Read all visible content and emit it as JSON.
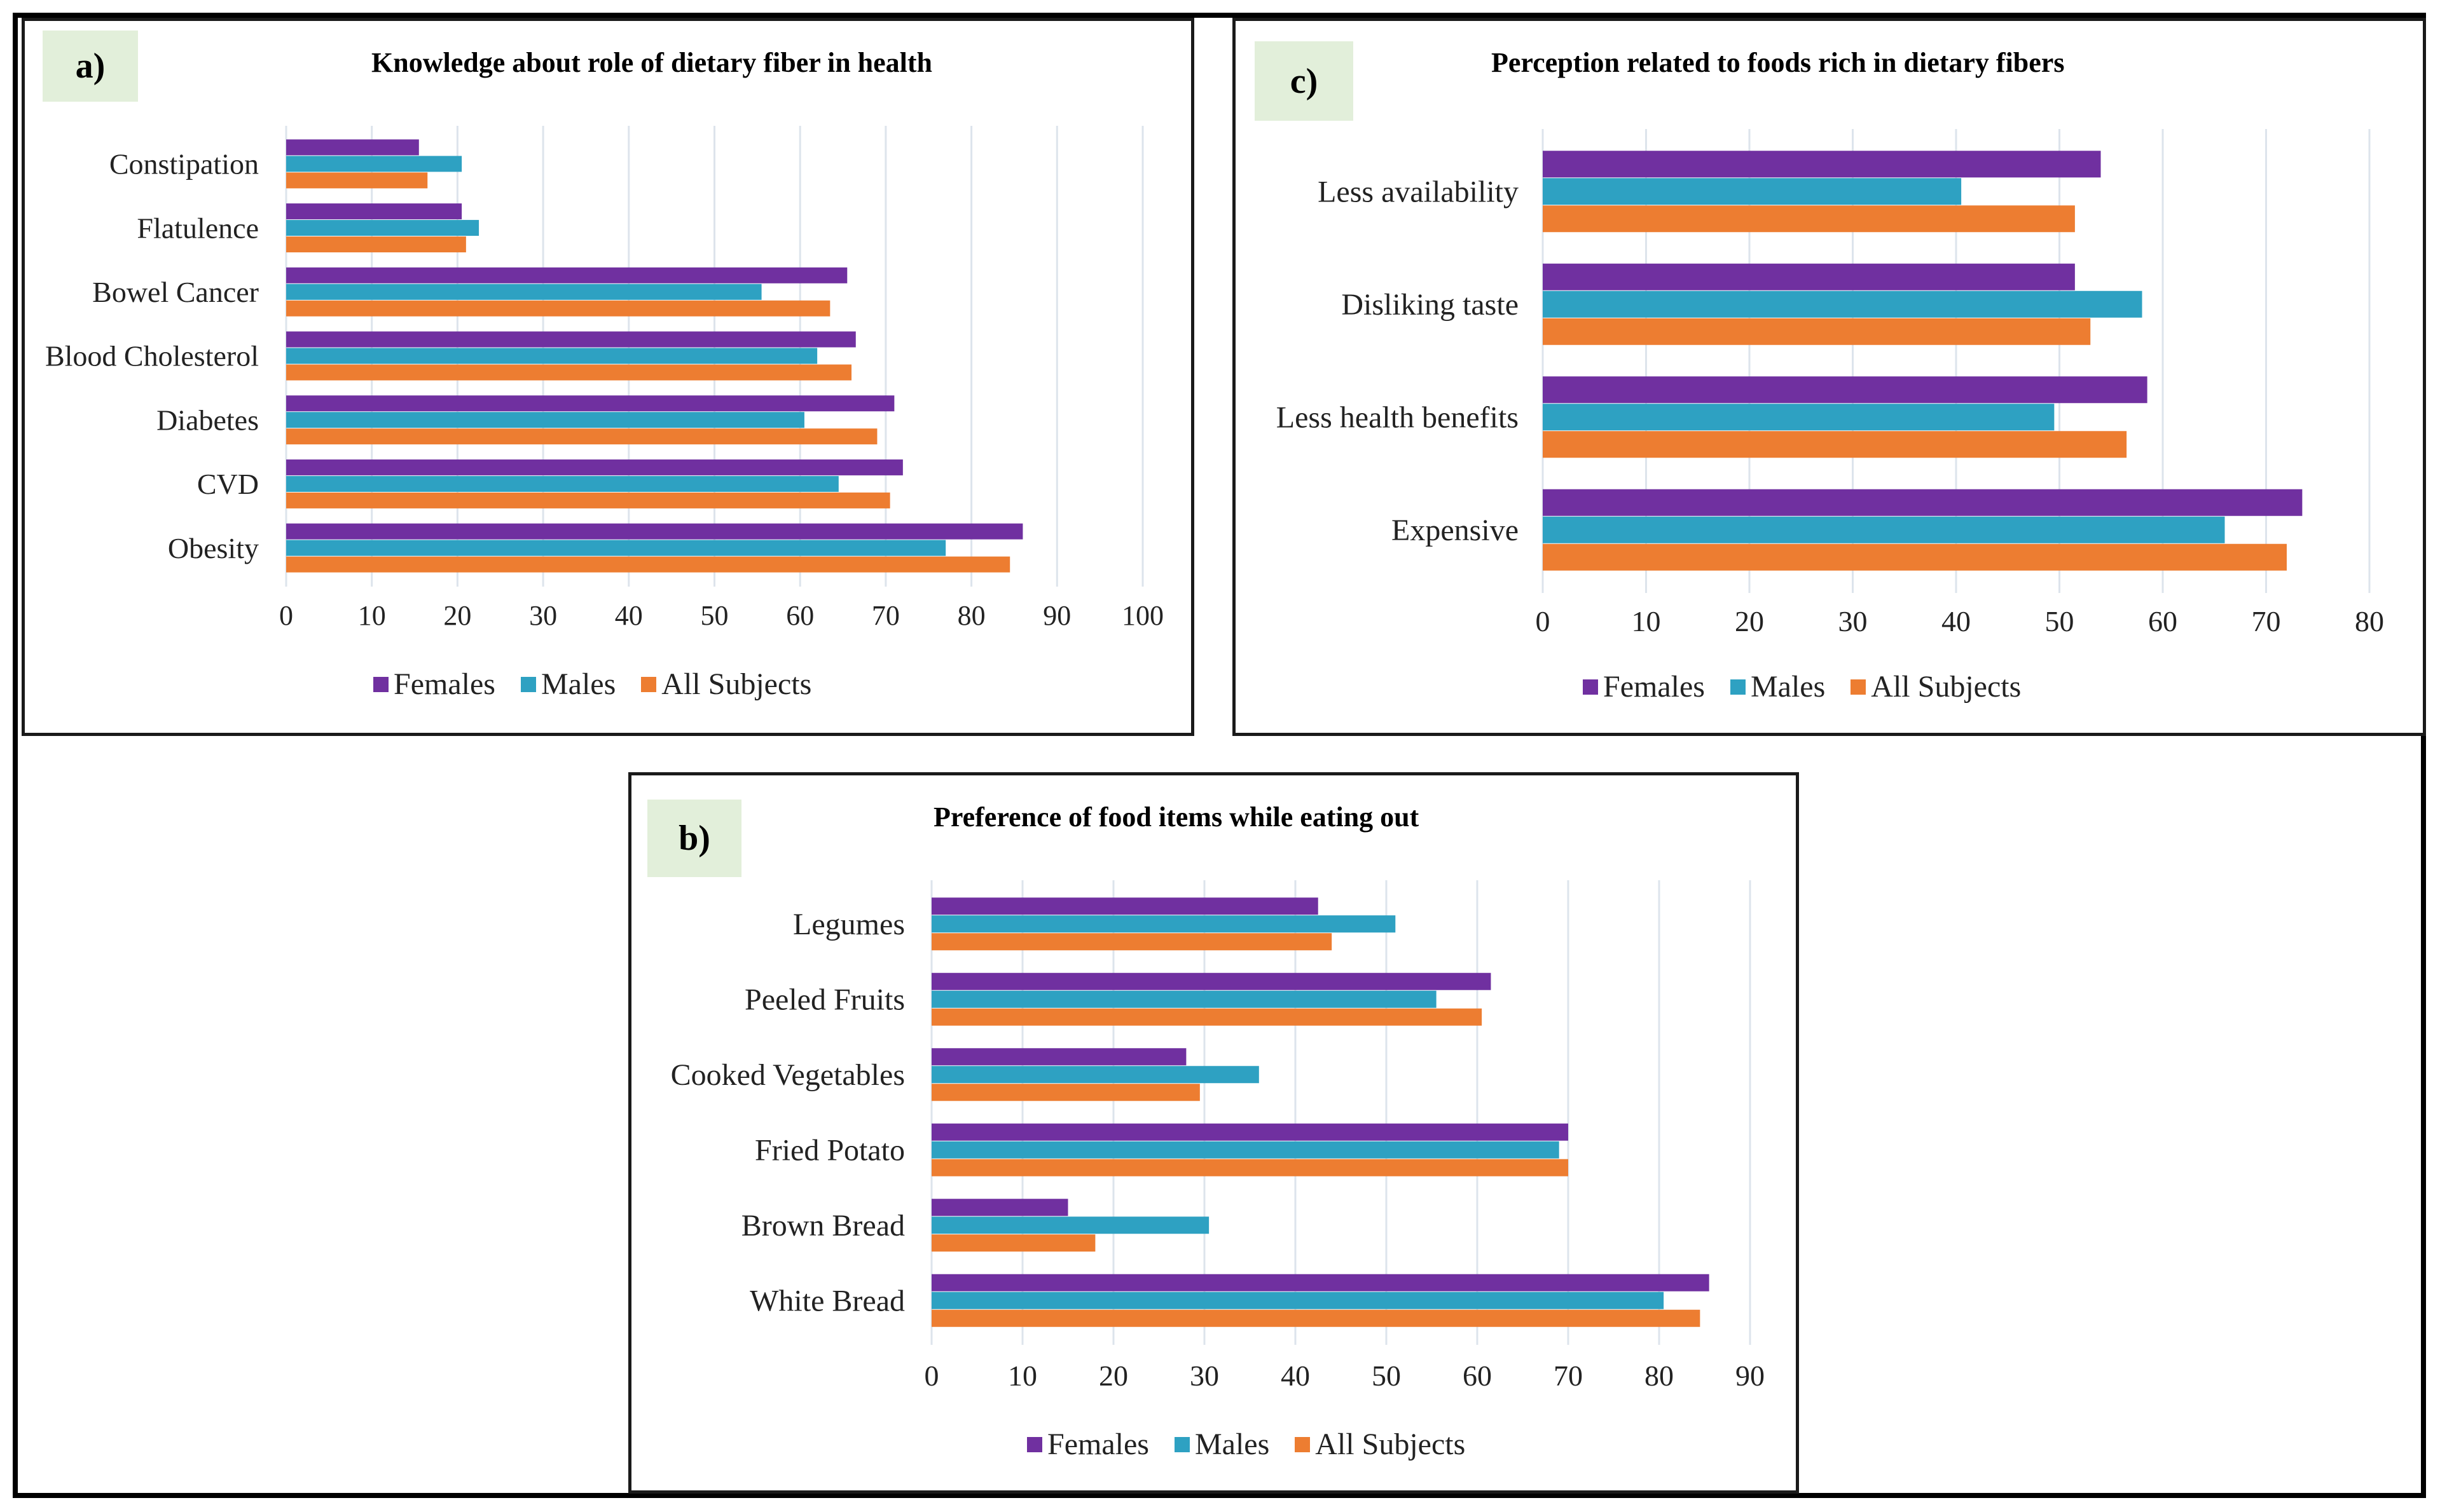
{
  "colors": {
    "females": "#7030a0",
    "males": "#2ea1c2",
    "all": "#ed7d31",
    "grid": "#dde4ec"
  },
  "legend": {
    "females": "Females",
    "males": "Males",
    "all": "All Subjects"
  },
  "chart_data": [
    {
      "id": "a",
      "label": "a)",
      "type": "bar",
      "orientation": "horizontal",
      "title": "Knowledge about role of dietary fiber in health",
      "categories": [
        "Constipation",
        "Flatulence",
        "Bowel Cancer",
        "Blood Cholesterol",
        "Diabetes",
        "CVD",
        "Obesity"
      ],
      "series": [
        {
          "name": "Females",
          "values": [
            15.5,
            20.5,
            65.5,
            66.5,
            71,
            72,
            86
          ]
        },
        {
          "name": "Males",
          "values": [
            20.5,
            22.5,
            55.5,
            62,
            60.5,
            64.5,
            77
          ]
        },
        {
          "name": "All Subjects",
          "values": [
            16.5,
            21,
            63.5,
            66,
            69,
            70.5,
            84.5
          ]
        }
      ],
      "xlim": [
        0,
        100
      ],
      "xticks": [
        0,
        10,
        20,
        30,
        40,
        50,
        60,
        70,
        80,
        90,
        100
      ],
      "grid": true,
      "legend_position": "bottom"
    },
    {
      "id": "c",
      "label": "c)",
      "type": "bar",
      "orientation": "horizontal",
      "title": "Perception related to foods rich in dietary fibers",
      "categories": [
        "Less availability",
        "Disliking taste",
        "Less health benefits",
        "Expensive"
      ],
      "series": [
        {
          "name": "Females",
          "values": [
            54,
            51.5,
            58.5,
            73.5
          ]
        },
        {
          "name": "Males",
          "values": [
            40.5,
            58,
            49.5,
            66
          ]
        },
        {
          "name": "All Subjects",
          "values": [
            51.5,
            53,
            56.5,
            72
          ]
        }
      ],
      "xlim": [
        0,
        80
      ],
      "xticks": [
        0,
        10,
        20,
        30,
        40,
        50,
        60,
        70,
        80
      ],
      "grid": true,
      "legend_position": "bottom"
    },
    {
      "id": "b",
      "label": "b)",
      "type": "bar",
      "orientation": "horizontal",
      "title": "Preference of food items while eating out",
      "categories": [
        "Legumes",
        "Peeled Fruits",
        "Cooked Vegetables",
        "Fried Potato",
        "Brown Bread",
        "White Bread"
      ],
      "series": [
        {
          "name": "Females",
          "values": [
            42.5,
            61.5,
            28,
            70,
            15,
            85.5
          ]
        },
        {
          "name": "Males",
          "values": [
            51,
            55.5,
            36,
            69,
            30.5,
            80.5
          ]
        },
        {
          "name": "All Subjects",
          "values": [
            44,
            60.5,
            29.5,
            70,
            18,
            84.5
          ]
        }
      ],
      "xlim": [
        0,
        90
      ],
      "xticks": [
        0,
        10,
        20,
        30,
        40,
        50,
        60,
        70,
        80,
        90
      ],
      "grid": true,
      "legend_position": "bottom"
    }
  ]
}
